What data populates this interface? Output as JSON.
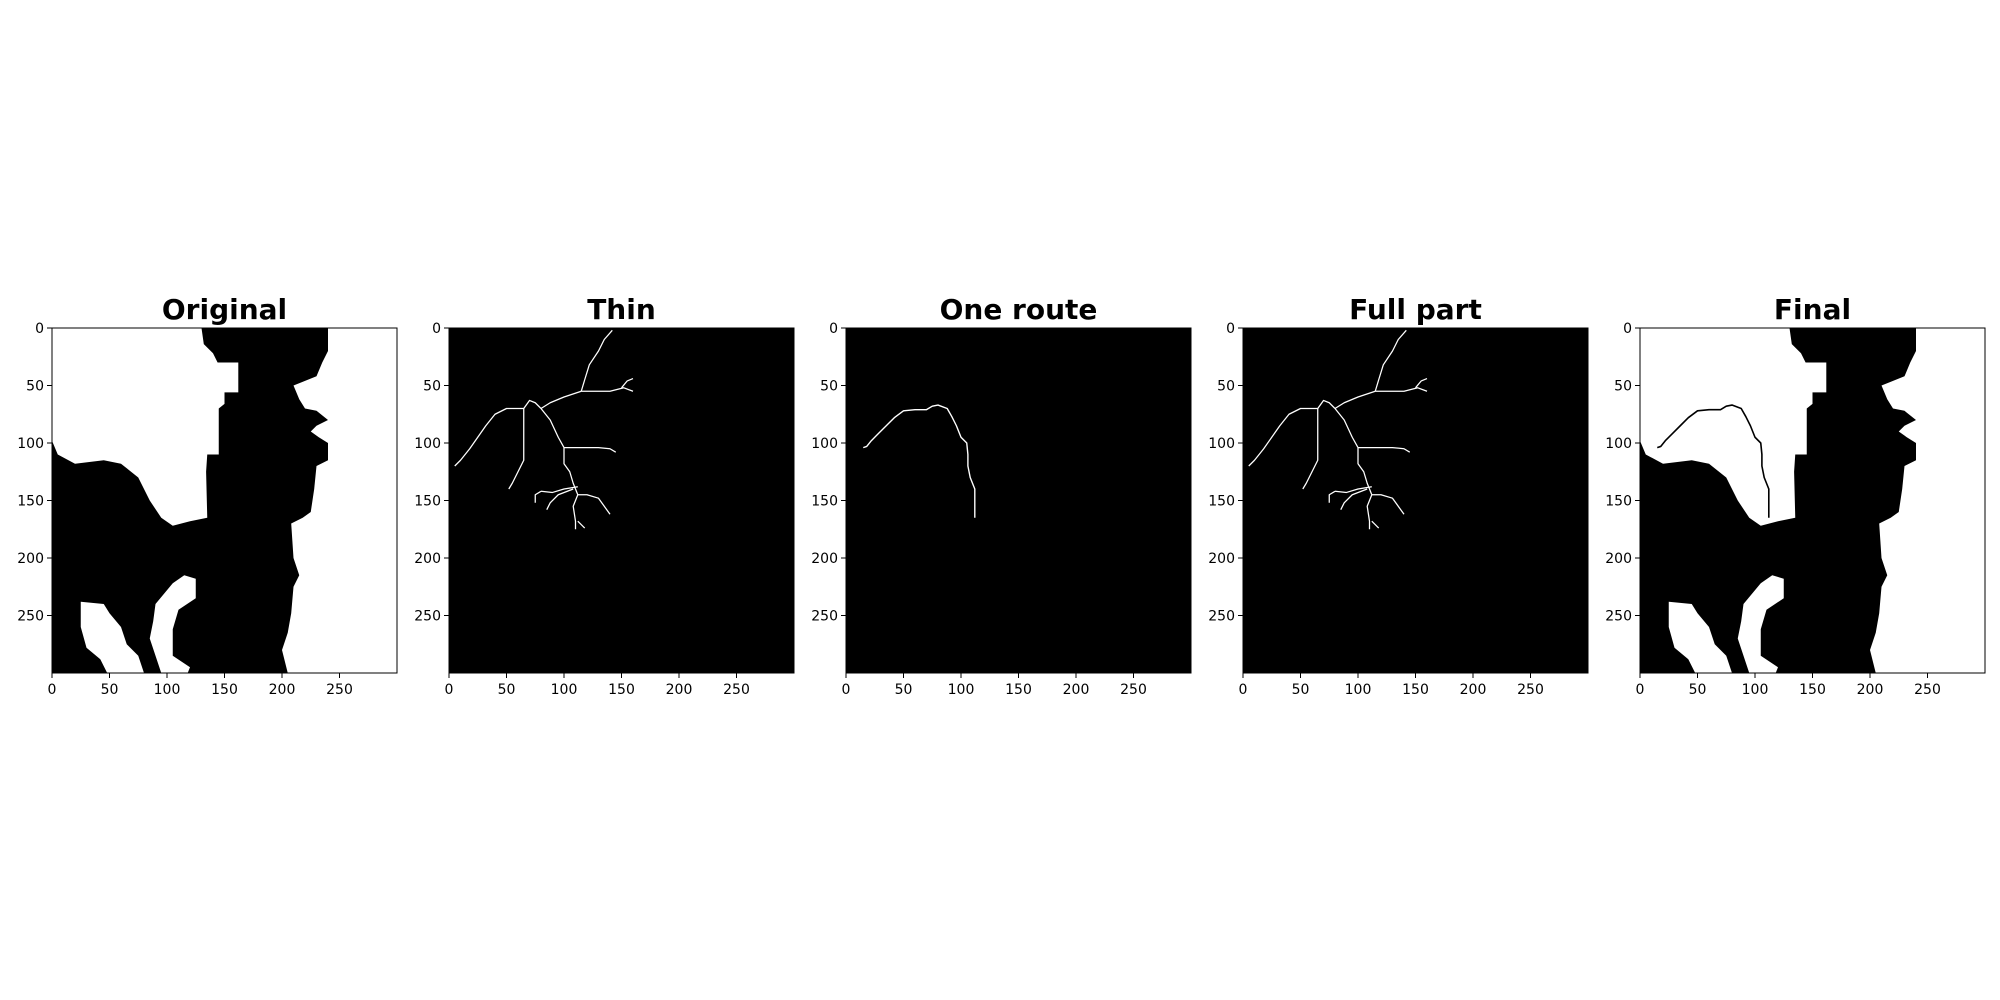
{
  "figure": {
    "panels": [
      {
        "title": "Original",
        "kind": "mask",
        "background": "#000000",
        "foreground": "#ffffff"
      },
      {
        "title": "Thin",
        "kind": "skeleton",
        "background": "#000000",
        "foreground": "#ffffff"
      },
      {
        "title": "One route",
        "kind": "route",
        "background": "#000000",
        "foreground": "#ffffff"
      },
      {
        "title": "Full part",
        "kind": "skeleton",
        "background": "#000000",
        "foreground": "#ffffff"
      },
      {
        "title": "Final",
        "kind": "final",
        "background": "#000000",
        "foreground": "#ffffff"
      }
    ],
    "image_extent": [
      0,
      300
    ],
    "x_ticks": [
      0,
      50,
      100,
      150,
      200,
      250
    ],
    "y_ticks": [
      0,
      50,
      100,
      150,
      200,
      250
    ],
    "mask": {
      "white_regions": [
        [
          [
            0,
            0
          ],
          [
            130,
            0
          ],
          [
            132,
            14
          ],
          [
            140,
            22
          ],
          [
            144,
            30
          ],
          [
            162,
            30
          ],
          [
            162,
            56
          ],
          [
            150,
            56
          ],
          [
            150,
            66
          ],
          [
            145,
            70
          ],
          [
            145,
            110
          ],
          [
            135,
            110
          ],
          [
            134,
            125
          ],
          [
            135,
            165
          ],
          [
            120,
            168
          ],
          [
            105,
            172
          ],
          [
            95,
            165
          ],
          [
            85,
            150
          ],
          [
            80,
            140
          ],
          [
            75,
            130
          ],
          [
            60,
            118
          ],
          [
            45,
            115
          ],
          [
            20,
            118
          ],
          [
            5,
            110
          ],
          [
            0,
            98
          ]
        ],
        [
          [
            240,
            0
          ],
          [
            300,
            0
          ],
          [
            300,
            300
          ],
          [
            205,
            300
          ],
          [
            200,
            280
          ],
          [
            205,
            265
          ],
          [
            208,
            248
          ],
          [
            210,
            225
          ],
          [
            215,
            215
          ],
          [
            210,
            200
          ],
          [
            208,
            170
          ],
          [
            218,
            165
          ],
          [
            225,
            160
          ],
          [
            228,
            140
          ],
          [
            230,
            120
          ],
          [
            240,
            115
          ],
          [
            240,
            100
          ],
          [
            232,
            95
          ],
          [
            225,
            90
          ],
          [
            230,
            85
          ],
          [
            240,
            80
          ],
          [
            230,
            72
          ],
          [
            220,
            70
          ],
          [
            215,
            62
          ],
          [
            210,
            50
          ],
          [
            230,
            42
          ],
          [
            235,
            30
          ],
          [
            240,
            20
          ]
        ],
        [
          [
            25,
            238
          ],
          [
            45,
            240
          ],
          [
            50,
            248
          ],
          [
            60,
            260
          ],
          [
            65,
            275
          ],
          [
            75,
            285
          ],
          [
            80,
            300
          ],
          [
            48,
            300
          ],
          [
            42,
            288
          ],
          [
            30,
            278
          ],
          [
            25,
            260
          ]
        ],
        [
          [
            90,
            240
          ],
          [
            105,
            222
          ],
          [
            115,
            215
          ],
          [
            125,
            218
          ],
          [
            125,
            235
          ],
          [
            110,
            245
          ],
          [
            105,
            262
          ],
          [
            105,
            285
          ],
          [
            120,
            295
          ],
          [
            118,
            300
          ],
          [
            95,
            300
          ],
          [
            90,
            285
          ],
          [
            85,
            270
          ],
          [
            88,
            255
          ]
        ]
      ]
    },
    "skeleton_branches": [
      [
        [
          142,
          2
        ],
        [
          135,
          10
        ],
        [
          130,
          20
        ],
        [
          122,
          32
        ],
        [
          118,
          45
        ],
        [
          115,
          55
        ]
      ],
      [
        [
          115,
          55
        ],
        [
          125,
          55
        ],
        [
          140,
          55
        ],
        [
          152,
          52
        ],
        [
          160,
          55
        ]
      ],
      [
        [
          150,
          52
        ],
        [
          155,
          46
        ],
        [
          160,
          44
        ]
      ],
      [
        [
          115,
          55
        ],
        [
          100,
          60
        ],
        [
          88,
          65
        ],
        [
          80,
          70
        ]
      ],
      [
        [
          80,
          70
        ],
        [
          75,
          65
        ],
        [
          70,
          63
        ],
        [
          65,
          70
        ],
        [
          60,
          70
        ],
        [
          50,
          70
        ],
        [
          40,
          75
        ],
        [
          32,
          85
        ],
        [
          25,
          95
        ],
        [
          18,
          105
        ],
        [
          10,
          115
        ],
        [
          5,
          120
        ]
      ],
      [
        [
          80,
          70
        ],
        [
          88,
          80
        ],
        [
          95,
          95
        ],
        [
          100,
          104
        ]
      ],
      [
        [
          100,
          104
        ],
        [
          115,
          104
        ],
        [
          130,
          104
        ],
        [
          140,
          105
        ],
        [
          145,
          108
        ]
      ],
      [
        [
          100,
          104
        ],
        [
          100,
          118
        ],
        [
          105,
          125
        ],
        [
          108,
          135
        ],
        [
          112,
          145
        ]
      ],
      [
        [
          112,
          145
        ],
        [
          120,
          145
        ],
        [
          130,
          148
        ],
        [
          135,
          155
        ],
        [
          140,
          162
        ]
      ],
      [
        [
          112,
          145
        ],
        [
          108,
          155
        ],
        [
          110,
          168
        ],
        [
          110,
          175
        ]
      ],
      [
        [
          112,
          138
        ],
        [
          100,
          140
        ],
        [
          90,
          143
        ],
        [
          80,
          142
        ]
      ],
      [
        [
          80,
          142
        ],
        [
          75,
          145
        ],
        [
          75,
          152
        ]
      ],
      [
        [
          108,
          140
        ],
        [
          95,
          145
        ],
        [
          88,
          152
        ],
        [
          85,
          158
        ]
      ],
      [
        [
          112,
          168
        ],
        [
          118,
          174
        ]
      ],
      [
        [
          65,
          70
        ],
        [
          65,
          115
        ],
        [
          60,
          125
        ],
        [
          55,
          135
        ],
        [
          52,
          140
        ]
      ]
    ],
    "route": [
      [
        15,
        104
      ],
      [
        18,
        103
      ],
      [
        22,
        98
      ],
      [
        28,
        92
      ],
      [
        35,
        85
      ],
      [
        42,
        78
      ],
      [
        50,
        72
      ],
      [
        60,
        71
      ],
      [
        70,
        71
      ],
      [
        75,
        68
      ],
      [
        80,
        67
      ],
      [
        88,
        70
      ],
      [
        92,
        77
      ],
      [
        96,
        85
      ],
      [
        100,
        95
      ],
      [
        105,
        100
      ],
      [
        106,
        110
      ],
      [
        106,
        120
      ],
      [
        108,
        130
      ],
      [
        112,
        140
      ],
      [
        112,
        150
      ],
      [
        112,
        160
      ],
      [
        112,
        165
      ]
    ]
  }
}
